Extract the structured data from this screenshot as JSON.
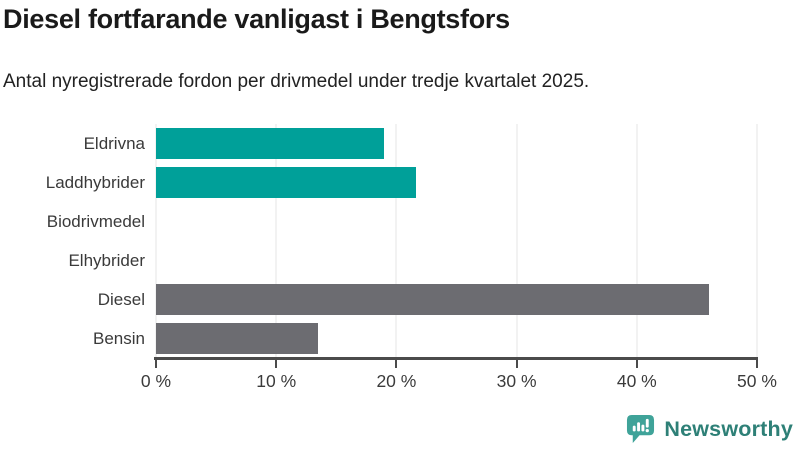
{
  "title": "Diesel fortfarande vanligast i Bengtsfors",
  "subtitle": "Antal nyregistrerade fordon per drivmedel under tredje kvartalet 2025.",
  "chart_data": {
    "type": "bar",
    "orientation": "horizontal",
    "title": "Diesel fortfarande vanligast i Bengtsfors",
    "subtitle": "Antal nyregistrerade fordon per drivmedel under tredje kvartalet 2025.",
    "categories": [
      "Eldrivna",
      "Laddhybrider",
      "Biodrivmedel",
      "Elhybrider",
      "Diesel",
      "Bensin"
    ],
    "values": [
      19,
      21.6,
      0,
      0,
      46,
      13.5
    ],
    "unit": "%",
    "xlabel": "",
    "ylabel": "",
    "xlim": [
      0,
      50
    ],
    "x_tick_labels": [
      "0 %",
      "10 %",
      "20 %",
      "30 %",
      "40 %",
      "50 %"
    ],
    "bar_colors": [
      "#00a099",
      "#00a099",
      "#00a099",
      "#00a099",
      "#6c6c71",
      "#6c6c71"
    ],
    "grid": true,
    "legend": "none",
    "gridline_color": "#e4e4e4",
    "axis_color": "#4b4b4b",
    "category_label_color": "#3a3a3a",
    "tick_label_color": "#3b3b3b"
  },
  "footer": {
    "brand": "Newsworthy",
    "logo_icon": "bar-chart-speech-bubble-icon",
    "logo_color": "#3fa399",
    "brand_text_color": "#2e8077"
  }
}
